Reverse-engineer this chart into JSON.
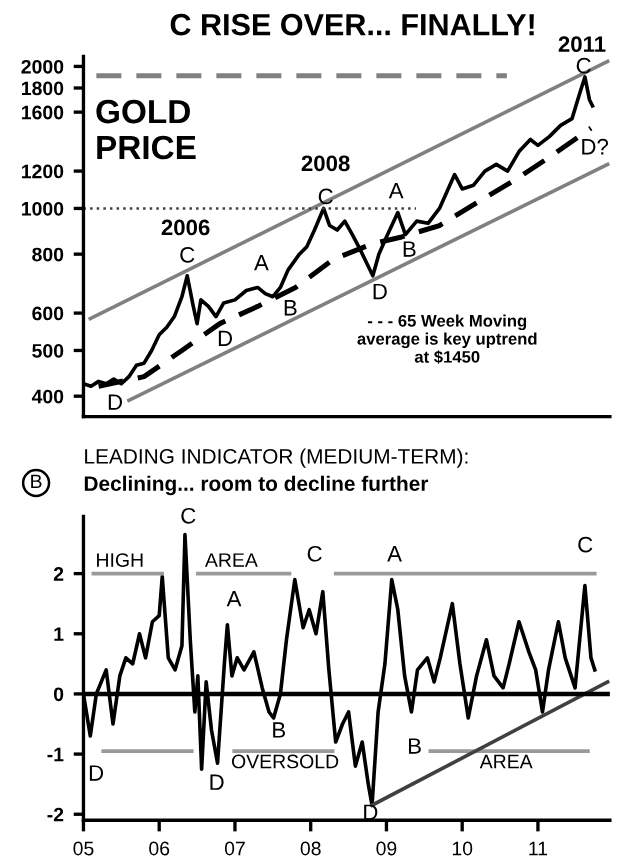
{
  "chart_data": [
    {
      "type": "line",
      "title": "C RISE OVER... FINALLY!",
      "log": true,
      "xlim": [
        5,
        11.95
      ],
      "ylim": [
        362,
        2100
      ],
      "yticks": [
        400,
        500,
        600,
        800,
        1000,
        1200,
        1600,
        1800,
        2000
      ],
      "tick_labels": "y",
      "series": [
        {
          "color": "#000000",
          "line_style": "solid",
          "x": [
            5.0,
            5.1,
            5.2,
            5.3,
            5.4,
            5.5,
            5.6,
            5.7,
            5.8,
            5.9,
            6.0,
            6.1,
            6.2,
            6.3,
            6.37,
            6.45,
            6.5,
            6.55,
            6.65,
            6.75,
            6.85,
            7.0,
            7.15,
            7.3,
            7.4,
            7.5,
            7.6,
            7.7,
            7.85,
            7.95,
            8.05,
            8.17,
            8.25,
            8.35,
            8.45,
            8.55,
            8.65,
            8.75,
            8.82,
            8.9,
            9.0,
            9.15,
            9.25,
            9.4,
            9.55,
            9.7,
            9.9,
            10.0,
            10.15,
            10.3,
            10.45,
            10.6,
            10.75,
            10.9,
            11.0,
            11.15,
            11.3,
            11.45,
            11.55,
            11.62,
            11.68,
            11.72
          ],
          "values": [
            425,
            420,
            430,
            425,
            435,
            425,
            440,
            465,
            470,
            500,
            540,
            560,
            590,
            650,
            720,
            620,
            570,
            640,
            620,
            590,
            630,
            640,
            670,
            680,
            660,
            650,
            680,
            740,
            800,
            830,
            900,
            1000,
            920,
            900,
            940,
            880,
            820,
            760,
            720,
            800,
            870,
            980,
            880,
            940,
            930,
            1000,
            1180,
            1100,
            1120,
            1200,
            1240,
            1200,
            1320,
            1400,
            1360,
            1420,
            1500,
            1550,
            1750,
            1900,
            1700,
            1650
          ]
        },
        {
          "color": "#000000",
          "line_style": "dashed",
          "x": [
            5.2,
            5.8,
            6.3,
            6.8,
            7.3,
            7.8,
            8.3,
            8.8,
            9.2,
            9.7,
            10.2,
            10.7,
            11.2,
            11.7
          ],
          "values": [
            420,
            440,
            500,
            570,
            620,
            680,
            780,
            840,
            870,
            920,
            1030,
            1150,
            1300,
            1480
          ]
        },
        {
          "color": "#808080",
          "line_style": "solid",
          "x": [
            5.09,
            11.92
          ],
          "values": [
            584,
            2050
          ]
        },
        {
          "color": "#808080",
          "line_style": "solid",
          "x": [
            5.6,
            11.92
          ],
          "values": [
            392,
            1240
          ]
        },
        {
          "color": "#808080",
          "line_style": "dashed",
          "x": [
            5.17,
            10.59
          ],
          "values": [
            1910,
            1910
          ]
        },
        {
          "color": "#404040",
          "line_style": "dotted",
          "x": [
            5.0,
            9.39
          ],
          "values": [
            1000,
            1000
          ]
        }
      ],
      "annotations": [
        "GOLD\nPRICE",
        "2006",
        "C",
        "A",
        "B",
        "D",
        "D",
        "2008",
        "C",
        "A",
        "B",
        "D",
        "2011",
        "C",
        "D?",
        "- - - 65 Week Moving\naverage is key uptrend\nat $1450"
      ]
    },
    {
      "type": "line",
      "title": "LEADING INDICATOR (MEDIUM-TERM):",
      "subtitle": "Declining... room to decline further",
      "xlim": [
        5,
        11.95
      ],
      "ylim": [
        -2.1,
        2.95
      ],
      "yticks": [
        -2,
        -1,
        0,
        1,
        2
      ],
      "xticks": [
        {
          "value": 5,
          "label": "05"
        },
        {
          "value": 6,
          "label": "06"
        },
        {
          "value": 7,
          "label": "07"
        },
        {
          "value": 8,
          "label": "08"
        },
        {
          "value": 9,
          "label": "09"
        },
        {
          "value": 10,
          "label": "10"
        },
        {
          "value": 11,
          "label": "11"
        }
      ],
      "ref_lines": [
        {
          "axis": "y",
          "value": 0,
          "color": "#000000"
        }
      ],
      "series": [
        {
          "color": "#000000",
          "line_style": "solid",
          "x": [
            5.0,
            5.09,
            5.17,
            5.3,
            5.39,
            5.48,
            5.56,
            5.65,
            5.74,
            5.82,
            5.91,
            6.0,
            6.04,
            6.12,
            6.21,
            6.3,
            6.34,
            6.41,
            6.47,
            6.51,
            6.56,
            6.62,
            6.69,
            6.77,
            6.86,
            6.9,
            6.96,
            7.03,
            7.12,
            7.25,
            7.36,
            7.45,
            7.51,
            7.6,
            7.68,
            7.79,
            7.9,
            7.98,
            8.07,
            8.16,
            8.24,
            8.33,
            8.42,
            8.5,
            8.59,
            8.68,
            8.76,
            8.81,
            8.89,
            8.98,
            9.07,
            9.15,
            9.24,
            9.33,
            9.41,
            9.54,
            9.63,
            9.71,
            9.87,
            9.97,
            10.08,
            10.19,
            10.32,
            10.42,
            10.54,
            10.62,
            10.75,
            10.88,
            10.97,
            11.06,
            11.14,
            11.27,
            11.36,
            11.49,
            11.62,
            11.7,
            11.75
          ],
          "values": [
            0,
            -0.7,
            0.0,
            0.4,
            -0.5,
            0.3,
            0.6,
            0.5,
            1.0,
            0.6,
            1.2,
            1.3,
            1.95,
            0.6,
            0.4,
            0.8,
            2.65,
            0.9,
            -0.3,
            0.3,
            -1.25,
            0.2,
            -0.6,
            -1.15,
            0.5,
            1.15,
            0.3,
            0.6,
            0.4,
            0.7,
            0.1,
            -0.3,
            -0.4,
            0.0,
            0.9,
            1.9,
            1.1,
            1.4,
            1.0,
            1.7,
            0.4,
            -0.8,
            -0.5,
            -0.3,
            -1.2,
            -0.8,
            -1.5,
            -1.85,
            -0.3,
            0.5,
            1.9,
            1.4,
            0.3,
            -0.3,
            0.4,
            0.6,
            0.2,
            0.6,
            1.5,
            0.5,
            -0.4,
            0.3,
            0.9,
            0.3,
            0.1,
            0.5,
            1.2,
            0.7,
            0.4,
            -0.3,
            0.4,
            1.2,
            0.6,
            0.1,
            1.8,
            0.6,
            0.4
          ]
        },
        {
          "color": "#9a9a9a",
          "line_style": "solid",
          "x": [
            5.13,
            6.04,
            6.08,
            6.51,
            7.72,
            7.76,
            8.33,
            11.75
          ],
          "values": [
            2,
            2,
            null,
            2,
            2,
            null,
            2,
            2
          ]
        },
        {
          "color": "#9a9a9a",
          "line_style": "solid",
          "x": [
            5.26,
            6.43,
            6.47,
            6.99,
            8.29,
            8.33,
            9.58,
            11.66
          ],
          "values": [
            -0.95,
            -0.95,
            null,
            -0.95,
            -0.95,
            null,
            -0.95,
            -0.95
          ]
        },
        {
          "color": "#404040",
          "line_style": "solid",
          "x": [
            8.81,
            11.92
          ],
          "values": [
            -1.85,
            0.2
          ]
        }
      ],
      "annotations": [
        "B",
        "HIGH",
        "AREA",
        "C",
        "A",
        "C",
        "A",
        "C",
        "B",
        "B",
        "D",
        "D",
        "D",
        "OVERSOLD",
        "AREA"
      ]
    }
  ]
}
